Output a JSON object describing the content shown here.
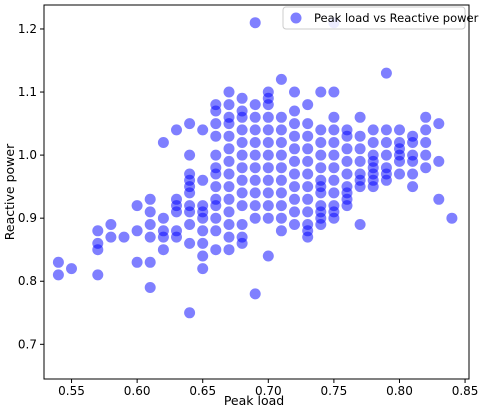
{
  "chart_data": {
    "type": "scatter",
    "title": "",
    "xlabel": "Peak load",
    "ylabel": "Reactive power",
    "xlim": [
      0.529,
      0.853
    ],
    "ylim": [
      0.645,
      1.238
    ],
    "xticks": [
      0.55,
      0.6,
      0.65,
      0.7,
      0.75,
      0.8,
      0.85
    ],
    "xtick_labels": [
      "0.55",
      "0.60",
      "0.65",
      "0.70",
      "0.75",
      "0.80",
      "0.85"
    ],
    "yticks": [
      0.7,
      0.8,
      0.9,
      1.0,
      1.1,
      1.2
    ],
    "ytick_labels": [
      "0.7",
      "0.8",
      "0.9",
      "1.0",
      "1.1",
      "1.2"
    ],
    "grid": false,
    "legend_position": "top-right",
    "series": [
      {
        "name": "Peak load vs Reactive power",
        "color": "#0000ff",
        "alpha": 0.5,
        "x": [
          0.54,
          0.54,
          0.55,
          0.57,
          0.57,
          0.57,
          0.57,
          0.58,
          0.58,
          0.59,
          0.6,
          0.6,
          0.6,
          0.61,
          0.61,
          0.61,
          0.61,
          0.61,
          0.61,
          0.62,
          0.62,
          0.62,
          0.62,
          0.62,
          0.63,
          0.63,
          0.63,
          0.63,
          0.63,
          0.63,
          0.64,
          0.64,
          0.64,
          0.64,
          0.64,
          0.64,
          0.64,
          0.64,
          0.64,
          0.64,
          0.64,
          0.65,
          0.65,
          0.65,
          0.65,
          0.65,
          0.65,
          0.65,
          0.65,
          0.65,
          0.66,
          0.66,
          0.66,
          0.66,
          0.66,
          0.66,
          0.66,
          0.66,
          0.66,
          0.66,
          0.66,
          0.66,
          0.66,
          0.67,
          0.67,
          0.67,
          0.67,
          0.67,
          0.67,
          0.67,
          0.67,
          0.67,
          0.67,
          0.67,
          0.67,
          0.67,
          0.67,
          0.68,
          0.68,
          0.68,
          0.68,
          0.68,
          0.68,
          0.68,
          0.68,
          0.68,
          0.68,
          0.68,
          0.68,
          0.68,
          0.69,
          0.69,
          0.69,
          0.69,
          0.69,
          0.69,
          0.69,
          0.69,
          0.69,
          0.69,
          0.69,
          0.69,
          0.7,
          0.7,
          0.7,
          0.7,
          0.7,
          0.7,
          0.7,
          0.7,
          0.7,
          0.7,
          0.7,
          0.7,
          0.7,
          0.71,
          0.71,
          0.71,
          0.71,
          0.71,
          0.71,
          0.71,
          0.71,
          0.71,
          0.71,
          0.71,
          0.72,
          0.72,
          0.72,
          0.72,
          0.72,
          0.72,
          0.72,
          0.72,
          0.72,
          0.72,
          0.72,
          0.73,
          0.73,
          0.73,
          0.73,
          0.73,
          0.73,
          0.73,
          0.73,
          0.73,
          0.73,
          0.73,
          0.73,
          0.74,
          0.74,
          0.74,
          0.74,
          0.74,
          0.74,
          0.74,
          0.74,
          0.74,
          0.74,
          0.74,
          0.74,
          0.75,
          0.75,
          0.75,
          0.75,
          0.75,
          0.75,
          0.75,
          0.75,
          0.75,
          0.75,
          0.75,
          0.75,
          0.76,
          0.76,
          0.76,
          0.76,
          0.76,
          0.76,
          0.76,
          0.76,
          0.76,
          0.77,
          0.77,
          0.77,
          0.77,
          0.77,
          0.77,
          0.77,
          0.77,
          0.78,
          0.78,
          0.78,
          0.78,
          0.78,
          0.78,
          0.78,
          0.78,
          0.79,
          0.79,
          0.79,
          0.79,
          0.79,
          0.79,
          0.79,
          0.8,
          0.8,
          0.8,
          0.8,
          0.8,
          0.8,
          0.81,
          0.81,
          0.81,
          0.81,
          0.81,
          0.81,
          0.82,
          0.82,
          0.82,
          0.82,
          0.82,
          0.83,
          0.83,
          0.83,
          0.84
        ],
        "y": [
          0.83,
          0.81,
          0.82,
          0.88,
          0.86,
          0.85,
          0.81,
          0.89,
          0.87,
          0.87,
          0.92,
          0.88,
          0.83,
          0.93,
          0.91,
          0.89,
          0.87,
          0.83,
          0.79,
          1.02,
          0.9,
          0.88,
          0.87,
          0.85,
          1.04,
          0.93,
          0.92,
          0.91,
          0.88,
          0.87,
          1.05,
          1.0,
          0.97,
          0.96,
          0.95,
          0.94,
          0.92,
          0.91,
          0.89,
          0.86,
          0.75,
          1.04,
          0.96,
          0.92,
          0.91,
          0.9,
          0.88,
          0.86,
          0.84,
          0.82,
          1.08,
          1.07,
          1.05,
          1.03,
          1.0,
          0.98,
          0.97,
          0.95,
          0.93,
          0.92,
          0.9,
          0.88,
          0.85,
          1.1,
          1.08,
          1.06,
          1.05,
          1.03,
          1.01,
          0.99,
          0.97,
          0.95,
          0.93,
          0.91,
          0.89,
          0.87,
          0.85,
          1.09,
          1.07,
          1.06,
          1.04,
          1.02,
          1.0,
          0.98,
          0.96,
          0.94,
          0.92,
          0.89,
          0.87,
          0.86,
          1.21,
          1.08,
          1.06,
          1.04,
          1.02,
          1.0,
          0.98,
          0.96,
          0.94,
          0.92,
          0.9,
          0.78,
          1.1,
          1.09,
          1.08,
          1.06,
          1.04,
          1.02,
          1.0,
          0.98,
          0.96,
          0.94,
          0.92,
          0.9,
          0.84,
          1.12,
          1.06,
          1.04,
          1.02,
          1.0,
          0.98,
          0.96,
          0.94,
          0.92,
          0.9,
          0.88,
          1.1,
          1.07,
          1.05,
          1.03,
          1.01,
          0.99,
          0.97,
          0.95,
          0.93,
          0.91,
          0.89,
          1.08,
          1.05,
          1.03,
          1.01,
          0.99,
          0.97,
          0.95,
          0.93,
          0.91,
          0.89,
          0.88,
          0.87,
          1.1,
          1.04,
          1.02,
          1.0,
          0.98,
          0.96,
          0.95,
          0.94,
          0.92,
          0.91,
          0.9,
          0.89,
          1.21,
          1.1,
          1.06,
          1.04,
          1.02,
          1.0,
          0.98,
          0.96,
          0.94,
          0.92,
          0.91,
          0.9,
          1.04,
          1.03,
          1.01,
          0.99,
          0.97,
          0.95,
          0.94,
          0.93,
          0.92,
          1.06,
          1.03,
          1.01,
          0.99,
          0.97,
          0.96,
          0.95,
          0.89,
          1.04,
          1.02,
          1.0,
          0.99,
          0.98,
          0.97,
          0.96,
          0.95,
          1.13,
          1.04,
          1.02,
          1.0,
          0.98,
          0.97,
          0.96,
          1.04,
          1.02,
          1.01,
          1.0,
          0.99,
          0.97,
          1.03,
          1.02,
          1.0,
          0.99,
          0.97,
          0.95,
          1.06,
          1.04,
          1.02,
          1.0,
          0.98,
          1.05,
          0.99,
          0.93,
          0.9
        ]
      }
    ]
  }
}
